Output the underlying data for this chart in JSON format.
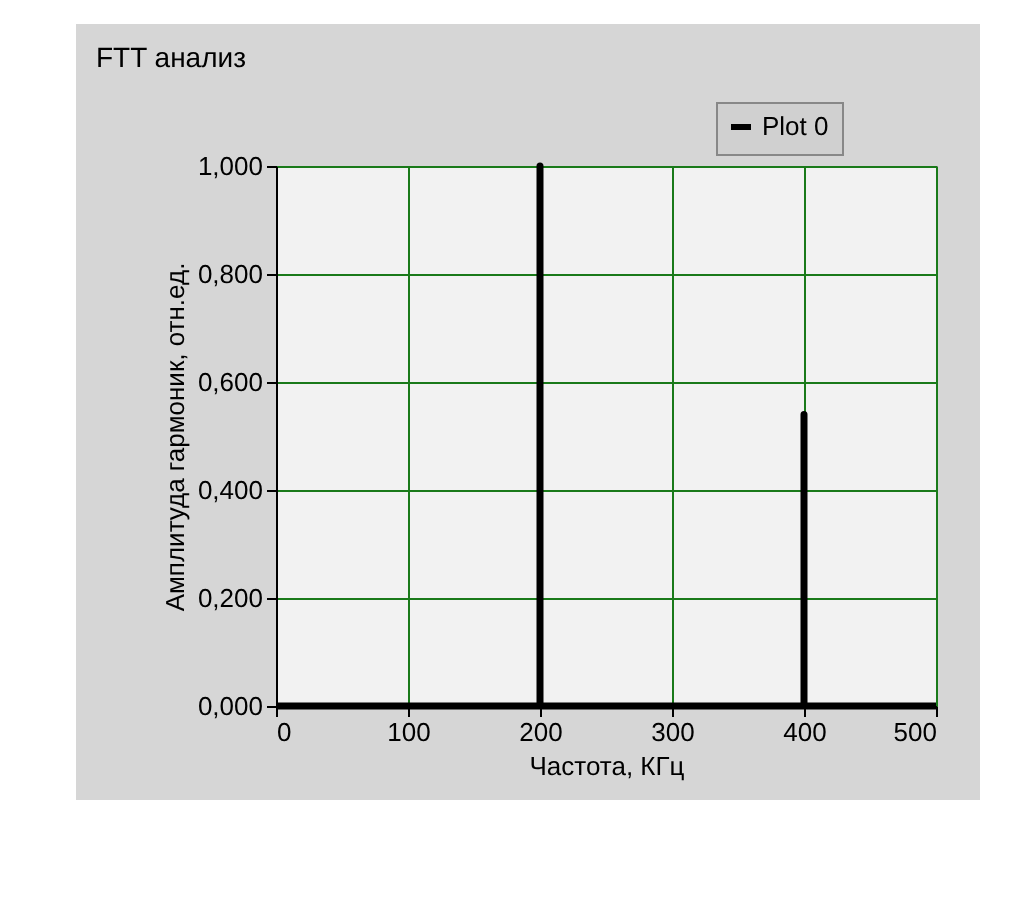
{
  "chart_data": {
    "type": "line",
    "title": "FTT анализ",
    "xlabel": "Частота, КГц",
    "ylabel": "Амплитуда гармоник, отн.ед.",
    "x": [
      0,
      200,
      200,
      200,
      400,
      400,
      400,
      500
    ],
    "series": [
      {
        "name": "Plot 0",
        "color": "#000000",
        "values": [
          0,
          0,
          1,
          0,
          0,
          0.54,
          0,
          0
        ]
      }
    ],
    "xlim": [
      0,
      500
    ],
    "xticks": [
      0,
      100,
      200,
      300,
      400,
      500
    ],
    "ylim": [
      0,
      1
    ],
    "yticks": [
      {
        "value": 0,
        "label": "0,000"
      },
      {
        "value": 0.2,
        "label": "0,200"
      },
      {
        "value": 0.4,
        "label": "0,400"
      },
      {
        "value": 0.6,
        "label": "0,600"
      },
      {
        "value": 0.8,
        "label": "0,800"
      },
      {
        "value": 1,
        "label": "1,000"
      }
    ],
    "grid": true,
    "legend": "top right",
    "marker": "none",
    "line_style": "solid"
  }
}
